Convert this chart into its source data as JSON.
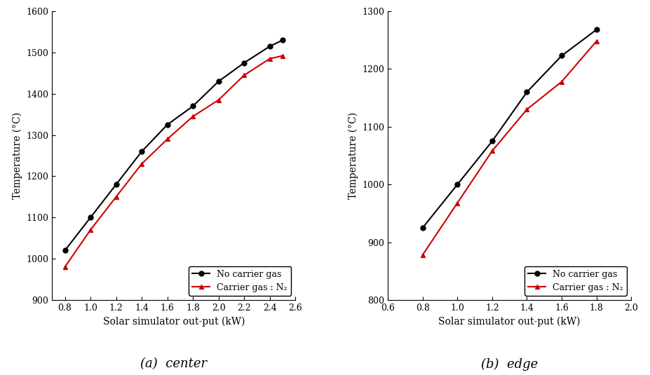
{
  "left": {
    "no_carrier_x": [
      0.8,
      1.0,
      1.2,
      1.4,
      1.6,
      1.8,
      2.0,
      2.2,
      2.4,
      2.5
    ],
    "no_carrier_y": [
      1020,
      1100,
      1180,
      1260,
      1325,
      1370,
      1430,
      1475,
      1515,
      1530
    ],
    "carrier_x": [
      0.8,
      1.0,
      1.2,
      1.4,
      1.6,
      1.8,
      2.0,
      2.2,
      2.4,
      2.5
    ],
    "carrier_y": [
      980,
      1070,
      1150,
      1230,
      1290,
      1345,
      1385,
      1445,
      1485,
      1492
    ],
    "xlim": [
      0.7,
      2.6
    ],
    "xticks": [
      0.8,
      1.0,
      1.2,
      1.4,
      1.6,
      1.8,
      2.0,
      2.2,
      2.4,
      2.6
    ],
    "ylim": [
      900,
      1600
    ],
    "yticks": [
      900,
      1000,
      1100,
      1200,
      1300,
      1400,
      1500,
      1600
    ],
    "xlabel": "Solar simulator out-put (kW)",
    "ylabel": "Temperature (°C)",
    "caption": "(a)  center"
  },
  "right": {
    "no_carrier_x": [
      0.8,
      1.0,
      1.2,
      1.4,
      1.6,
      1.8
    ],
    "no_carrier_y": [
      925,
      1000,
      1075,
      1160,
      1223,
      1268
    ],
    "carrier_x": [
      0.8,
      1.0,
      1.2,
      1.4,
      1.6,
      1.8
    ],
    "carrier_y": [
      878,
      968,
      1058,
      1130,
      1178,
      1248
    ],
    "xlim": [
      0.6,
      2.0
    ],
    "xticks": [
      0.6,
      0.8,
      1.0,
      1.2,
      1.4,
      1.6,
      1.8,
      2.0
    ],
    "ylim": [
      800,
      1300
    ],
    "yticks": [
      800,
      900,
      1000,
      1100,
      1200,
      1300
    ],
    "xlabel": "Solar simulator out-put (kW)",
    "ylabel": "Temperature (°C)",
    "caption": "(b)  edge"
  },
  "legend_labels": [
    "No carrier gas",
    "Carrier gas : N₂"
  ],
  "no_carrier_color": "#000000",
  "carrier_color": "#cc0000",
  "line_width": 1.5,
  "marker_size": 5,
  "font_family": "serif",
  "font_size": 10,
  "caption_fontsize": 13
}
